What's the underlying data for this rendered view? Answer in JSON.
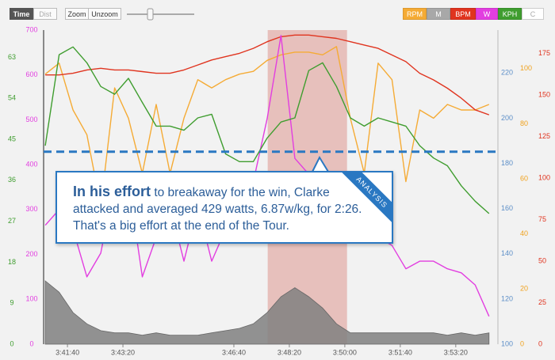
{
  "toolbar": {
    "toggle": [
      "Time",
      "Dist"
    ],
    "buttons": [
      "Zoom",
      "Unzoom"
    ],
    "extra_legend": "C"
  },
  "chart_data": {
    "type": "line",
    "x": [
      13260,
      13285,
      13310,
      13335,
      13360,
      13385,
      13410,
      13435,
      13460,
      13485,
      13510,
      13535,
      13560,
      13585,
      13610,
      13635,
      13660,
      13685,
      13710,
      13735,
      13760,
      13785,
      13810,
      13835,
      13860,
      13885,
      13910,
      13935,
      13960,
      13985,
      14010,
      14035,
      14060
    ],
    "xlim": [
      13257,
      14076
    ],
    "xticks": [
      {
        "value": 13300,
        "label": "3:41:40"
      },
      {
        "value": 13400,
        "label": "3:43:20"
      },
      {
        "value": 13600,
        "label": "3:46:40"
      },
      {
        "value": 13700,
        "label": "3:48:20"
      },
      {
        "value": 13800,
        "label": "3:50:00"
      },
      {
        "value": 13900,
        "label": "3:51:40"
      },
      {
        "value": 14000,
        "label": "3:53:20"
      }
    ],
    "axes": [
      {
        "side": "left",
        "color": "#3f9d2f",
        "ylim": [
          0,
          69
        ],
        "yticks": [
          0,
          9,
          18,
          27,
          36,
          45,
          54,
          63
        ]
      },
      {
        "side": "left",
        "color": "#e23ee0",
        "ylim": [
          0,
          700
        ],
        "yticks": [
          0,
          100,
          200,
          300,
          400,
          500,
          600,
          700
        ]
      },
      {
        "side": "right",
        "color": "#5d8fc8",
        "ylim": [
          100,
          239
        ],
        "yticks": [
          100,
          120,
          140,
          160,
          180,
          200,
          220
        ]
      },
      {
        "side": "right",
        "color": "#f0a21e",
        "ylim": [
          0,
          114
        ],
        "yticks": [
          0,
          20,
          40,
          60,
          80,
          100
        ]
      },
      {
        "side": "right",
        "color": "#e0341f",
        "ylim": [
          0,
          189
        ],
        "yticks": [
          0,
          25,
          50,
          75,
          100,
          125,
          150,
          175
        ]
      }
    ],
    "series": [
      {
        "name": "RPM",
        "color": "#f5ab35",
        "axis": 3,
        "style": "line",
        "values": [
          98,
          102,
          85,
          76,
          50,
          93,
          82,
          62,
          87,
          62,
          82,
          96,
          93,
          96,
          98,
          99,
          103,
          105,
          106,
          106,
          105,
          108,
          82,
          62,
          102,
          96,
          59,
          85,
          82,
          87,
          85,
          85,
          87
        ]
      },
      {
        "name": "M",
        "color": "#808080",
        "axis": 2,
        "style": "area",
        "values": [
          128,
          123,
          114,
          109,
          106,
          105,
          105,
          104,
          105,
          104,
          104,
          104,
          105,
          106,
          107,
          109,
          114,
          121,
          125,
          121,
          116,
          109,
          105,
          105,
          105,
          105,
          105,
          105,
          105,
          104,
          105,
          104,
          105
        ]
      },
      {
        "name": "BPM",
        "color": "#e0341f",
        "axis": 4,
        "style": "line",
        "values": [
          162,
          162,
          163,
          165,
          166,
          165,
          165,
          164,
          163,
          163,
          165,
          168,
          171,
          173,
          175,
          178,
          182,
          185,
          186,
          186,
          185,
          184,
          182,
          180,
          178,
          174,
          170,
          163,
          159,
          154,
          148,
          141,
          138
        ]
      },
      {
        "name": "W",
        "color": "#e23ee0",
        "axis": 1,
        "style": "line",
        "values": [
          265,
          300,
          256,
          150,
          203,
          362,
          362,
          150,
          238,
          309,
          185,
          309,
          185,
          256,
          291,
          362,
          503,
          688,
          414,
          379,
          309,
          291,
          273,
          256,
          238,
          220,
          168,
          185,
          185,
          168,
          159,
          132,
          62
        ]
      },
      {
        "name": "KPH",
        "color": "#3f9d2f",
        "axis": 0,
        "style": "line",
        "values": [
          43.6,
          63.6,
          65.3,
          61.8,
          56.6,
          54.9,
          58.4,
          53.1,
          47.9,
          47.9,
          47,
          49.7,
          50.5,
          41.8,
          40.1,
          40.1,
          45.3,
          48.8,
          49.7,
          60.1,
          61.8,
          56.6,
          49.7,
          47.9,
          49.7,
          48.8,
          47.9,
          43.6,
          40.9,
          39.2,
          34.8,
          31.4,
          28.7
        ]
      }
    ],
    "highlight": [
      13661,
      13804
    ],
    "reference_line": {
      "value": 429,
      "axis": 1,
      "color": "#2a78c2"
    },
    "annotation": {
      "lead": "In his effort",
      "text": "to breakaway for the win, Clarke attacked and averaged 429 watts, 6.87w/kg, for 2:26. That's a big effort at the end of the Tour.",
      "tag": "ANALYSIS"
    }
  }
}
